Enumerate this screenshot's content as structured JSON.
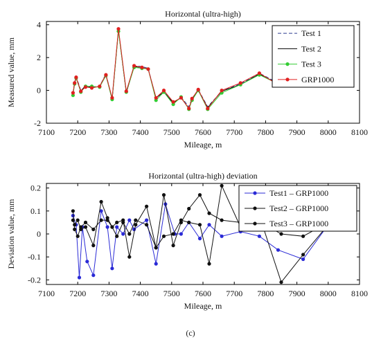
{
  "caption": "(c)",
  "chart_data": [
    {
      "type": "line",
      "title": "Horizontal (ultra-high)",
      "xlabel": "Mileage, m",
      "ylabel": "Measured value, mm",
      "xlim": [
        7100,
        8100
      ],
      "ylim": [
        -2,
        4.2
      ],
      "xticks": [
        7100,
        7200,
        7300,
        7400,
        7500,
        7600,
        7700,
        7800,
        7900,
        8000,
        8100
      ],
      "yticks": [
        -2,
        0,
        2,
        4
      ],
      "legend_position": "top-right",
      "x": [
        7185,
        7190,
        7195,
        7210,
        7225,
        7245,
        7270,
        7290,
        7310,
        7330,
        7355,
        7380,
        7405,
        7425,
        7450,
        7475,
        7505,
        7530,
        7555,
        7565,
        7585,
        7615,
        7660,
        7720,
        7780,
        7840,
        7900,
        7960,
        8000
      ],
      "series": [
        {
          "name": "Test 1",
          "color": "#2b3a8f",
          "dash": "5,3",
          "marker": "none",
          "values": [
            -0.15,
            0.5,
            0.85,
            0.0,
            0.25,
            0.2,
            0.25,
            1.0,
            -0.5,
            3.7,
            -0.1,
            1.5,
            1.45,
            1.35,
            -0.5,
            -0.05,
            -0.8,
            -0.4,
            -1.0,
            -0.5,
            0.05,
            -1.0,
            -0.05,
            0.4,
            1.05,
            0.45,
            0.6,
            0.85,
            0.9
          ]
        },
        {
          "name": "Test 2",
          "color": "#000000",
          "dash": "",
          "marker": "none",
          "values": [
            -0.2,
            0.45,
            0.75,
            -0.05,
            0.3,
            0.15,
            0.25,
            0.95,
            -0.55,
            3.65,
            -0.15,
            1.45,
            1.4,
            1.3,
            -0.45,
            -0.1,
            -0.75,
            -0.45,
            -1.1,
            -0.55,
            0.0,
            -1.05,
            -0.05,
            0.35,
            1.0,
            0.4,
            0.55,
            0.9,
            0.95
          ]
        },
        {
          "name": "Test 3",
          "color": "#33cc33",
          "dash": "",
          "marker": "circle",
          "values": [
            -0.3,
            0.4,
            0.75,
            -0.1,
            0.25,
            0.25,
            0.2,
            0.9,
            -0.55,
            3.6,
            -0.1,
            1.4,
            1.35,
            1.3,
            -0.6,
            -0.1,
            -0.85,
            -0.4,
            -1.15,
            -0.6,
            0.0,
            -1.15,
            -0.15,
            0.35,
            0.95,
            0.4,
            0.6,
            0.8,
            0.9
          ]
        },
        {
          "name": "GRP1000",
          "color": "#e02020",
          "dash": "",
          "marker": "circle",
          "values": [
            -0.15,
            0.45,
            0.8,
            -0.05,
            0.2,
            0.15,
            0.25,
            0.95,
            -0.45,
            3.75,
            -0.05,
            1.5,
            1.4,
            1.3,
            -0.45,
            0.0,
            -0.7,
            -0.45,
            -1.1,
            -0.5,
            0.05,
            -1.1,
            0.0,
            0.45,
            1.05,
            0.35,
            0.5,
            0.9,
            0.9
          ]
        }
      ]
    },
    {
      "type": "line",
      "title": "Horizontal (ultra-high) deviation",
      "xlabel": "Mileage, m",
      "ylabel": "Deviation value, mm",
      "xlim": [
        7100,
        8100
      ],
      "ylim": [
        -0.22,
        0.22
      ],
      "xticks": [
        7100,
        7200,
        7300,
        7400,
        7500,
        7600,
        7700,
        7800,
        7900,
        8000,
        8100
      ],
      "yticks": [
        -0.2,
        -0.1,
        0,
        0.1,
        0.2
      ],
      "ytick_labels": [
        "-0.2",
        "-0.1",
        "0",
        "0.1",
        "0.2"
      ],
      "legend_position": "top-right",
      "series": [
        {
          "name": "Test1 – GRP1000",
          "color": "#2a2ad6",
          "marker": "circle",
          "x": [
            7185,
            7195,
            7205,
            7215,
            7230,
            7250,
            7275,
            7295,
            7310,
            7325,
            7345,
            7365,
            7380,
            7420,
            7450,
            7480,
            7510,
            7530,
            7555,
            7590,
            7620,
            7660,
            7720,
            7780,
            7840,
            7920,
            8000
          ],
          "values": [
            0.08,
            0.04,
            -0.19,
            0.03,
            -0.12,
            -0.18,
            0.1,
            0.03,
            -0.15,
            0.03,
            0.0,
            0.06,
            0.02,
            0.06,
            -0.13,
            0.13,
            0.0,
            0.0,
            0.05,
            -0.02,
            0.04,
            -0.01,
            0.01,
            -0.01,
            -0.07,
            -0.11,
            0.04
          ]
        },
        {
          "name": "Test2 – GRP1000",
          "color": "#111111",
          "marker": "circle",
          "x": [
            7185,
            7190,
            7200,
            7210,
            7225,
            7250,
            7275,
            7295,
            7310,
            7325,
            7345,
            7365,
            7385,
            7420,
            7450,
            7475,
            7505,
            7530,
            7555,
            7590,
            7620,
            7660,
            7720,
            7785,
            7850,
            7920,
            8000
          ],
          "values": [
            0.06,
            0.04,
            0.06,
            0.02,
            0.03,
            -0.05,
            0.14,
            0.07,
            0.03,
            -0.01,
            0.05,
            0.0,
            0.06,
            0.04,
            -0.06,
            0.17,
            -0.05,
            0.05,
            0.11,
            0.17,
            0.09,
            0.06,
            0.05,
            0.06,
            -0.21,
            -0.09,
            0.04
          ]
        },
        {
          "name": "Test3 – GRP1000",
          "color": "#111111",
          "marker": "circle",
          "x": [
            7185,
            7190,
            7200,
            7210,
            7225,
            7250,
            7275,
            7295,
            7310,
            7325,
            7345,
            7365,
            7385,
            7420,
            7450,
            7475,
            7505,
            7530,
            7555,
            7590,
            7620,
            7660,
            7720,
            7785,
            7850,
            7920,
            8000
          ],
          "values": [
            0.1,
            0.02,
            -0.01,
            0.03,
            0.05,
            0.02,
            0.06,
            0.06,
            0.03,
            0.05,
            0.06,
            -0.1,
            0.04,
            0.12,
            -0.06,
            -0.01,
            0.0,
            0.06,
            0.05,
            0.04,
            -0.13,
            0.21,
            0.03,
            0.05,
            0.0,
            -0.01,
            0.05
          ]
        }
      ]
    }
  ]
}
